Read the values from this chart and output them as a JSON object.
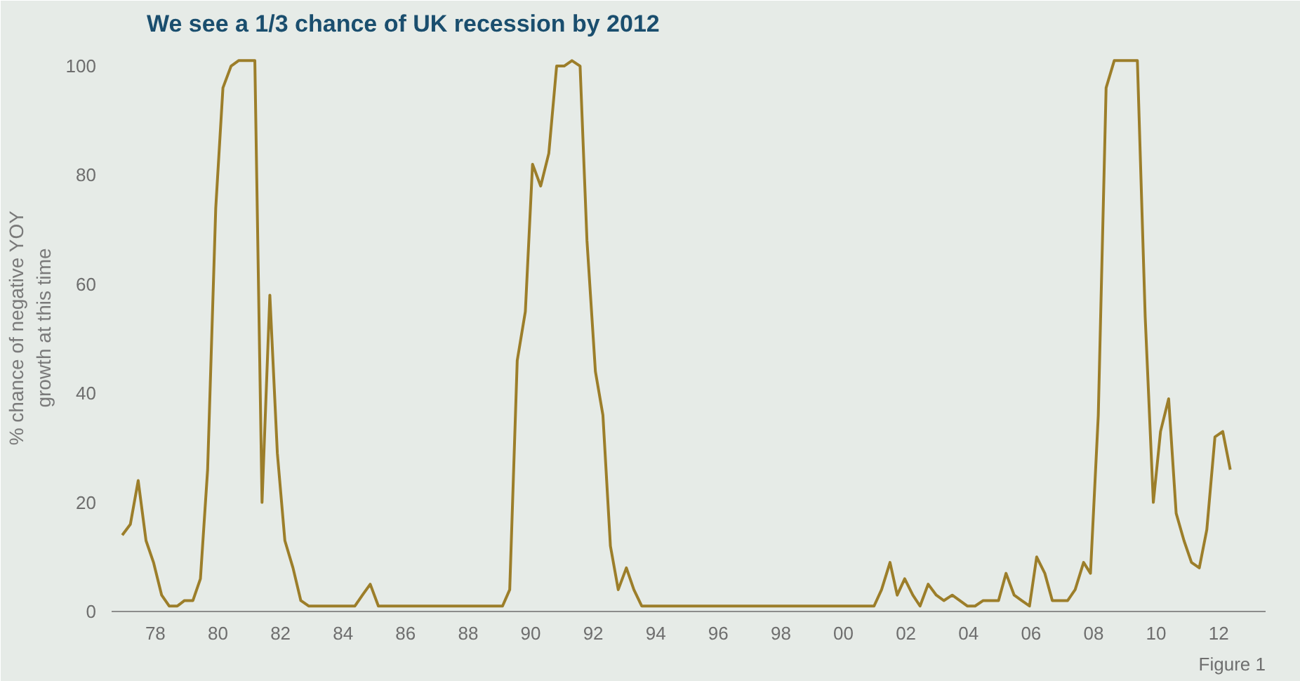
{
  "chart_data": {
    "type": "line",
    "title": "We see a 1/3 chance of UK recession by 2012",
    "ylabel": "% chance of negative YOY\ngrowth at this time",
    "x": [
      1976.94,
      1977.2,
      1977.45,
      1977.7,
      1977.94,
      1978.2,
      1978.44,
      1978.7,
      1978.93,
      1979.2,
      1979.44,
      1979.67,
      1979.93,
      1980.16,
      1980.42,
      1980.66,
      1980.92,
      1981.18,
      1981.41,
      1981.66,
      1981.9,
      1982.14,
      1982.4,
      1982.65,
      1982.9,
      1983.15,
      1983.65,
      1984.13,
      1984.38,
      1984.62,
      1984.87,
      1985.13,
      1986.5,
      1988.0,
      1989.1,
      1989.33,
      1989.57,
      1989.83,
      1990.06,
      1990.32,
      1990.58,
      1990.83,
      1991.07,
      1991.32,
      1991.58,
      1991.8,
      1992.07,
      1992.31,
      1992.55,
      1992.8,
      1993.06,
      1993.3,
      1993.55,
      1994.5,
      1995.75,
      1996.2,
      1996.52,
      1997.5,
      1998.5,
      1998.7,
      1998.96,
      2000.0,
      2000.98,
      2001.22,
      2001.49,
      2001.72,
      2001.96,
      2002.22,
      2002.45,
      2002.71,
      2002.97,
      2003.21,
      2003.48,
      2003.72,
      2003.96,
      2004.21,
      2004.47,
      2004.71,
      2004.96,
      2005.2,
      2005.46,
      2005.7,
      2005.95,
      2006.18,
      2006.44,
      2006.68,
      2006.93,
      2007.17,
      2007.41,
      2007.68,
      2007.9,
      2008.15,
      2008.4,
      2008.66,
      2008.9,
      2009.14,
      2009.4,
      2009.65,
      2009.91,
      2010.14,
      2010.4,
      2010.64,
      2010.89,
      2011.13,
      2011.38,
      2011.62,
      2011.88,
      2012.13,
      2012.37
    ],
    "series": [
      {
        "color": "#9c7e2a",
        "values": [
          14,
          16,
          24,
          13,
          9,
          3,
          1,
          1,
          2,
          2,
          6,
          26,
          74,
          96,
          100,
          101,
          101,
          101,
          20,
          58,
          29,
          13,
          8,
          2,
          1,
          1,
          1,
          1,
          1,
          3,
          5,
          1,
          1,
          1,
          1,
          4,
          46,
          55,
          82,
          78,
          84,
          100,
          100,
          101,
          100,
          68,
          44,
          36,
          12,
          4,
          8,
          4,
          1,
          1,
          1,
          1,
          1,
          1,
          1,
          1,
          1,
          1,
          1,
          4,
          9,
          3,
          6,
          3,
          1,
          5,
          3,
          2,
          3,
          2,
          1,
          1,
          2,
          2,
          2,
          7,
          3,
          2,
          1,
          10,
          7,
          2,
          2,
          2,
          4,
          9,
          7,
          36,
          96,
          101,
          101,
          101,
          101,
          54,
          20,
          33,
          39,
          18,
          13,
          9,
          8,
          15,
          32,
          33,
          26
        ]
      }
    ],
    "xlim": [
      1976.6,
      2013.5
    ],
    "ylim": [
      0,
      104
    ],
    "xticks": [
      {
        "value": 1978,
        "label": "78"
      },
      {
        "value": 1980,
        "label": "80"
      },
      {
        "value": 1982,
        "label": "82"
      },
      {
        "value": 1984,
        "label": "84"
      },
      {
        "value": 1986,
        "label": "86"
      },
      {
        "value": 1988,
        "label": "88"
      },
      {
        "value": 1990,
        "label": "90"
      },
      {
        "value": 1992,
        "label": "92"
      },
      {
        "value": 1994,
        "label": "94"
      },
      {
        "value": 1996,
        "label": "96"
      },
      {
        "value": 1998,
        "label": "98"
      },
      {
        "value": 2000,
        "label": "00"
      },
      {
        "value": 2002,
        "label": "02"
      },
      {
        "value": 2004,
        "label": "04"
      },
      {
        "value": 2006,
        "label": "06"
      },
      {
        "value": 2008,
        "label": "08"
      },
      {
        "value": 2010,
        "label": "10"
      },
      {
        "value": 2012,
        "label": "12"
      }
    ],
    "yticks": [
      0,
      20,
      40,
      60,
      80,
      100
    ],
    "annotations": [
      "Figure 1"
    ],
    "grid": false,
    "marker": "none",
    "line_style": "solid"
  }
}
